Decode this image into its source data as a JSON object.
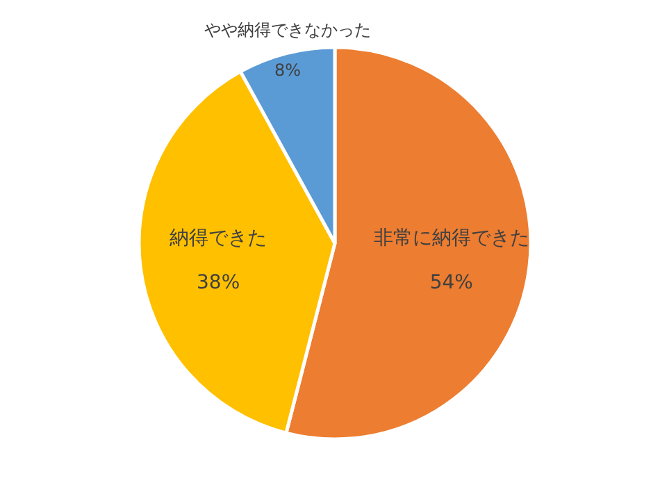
{
  "chart_data": {
    "type": "pie",
    "categories": [
      "非常に納得できた",
      "納得できた",
      "やや納得できなかった"
    ],
    "values": [
      54,
      38,
      8
    ],
    "colors": [
      "#ed7d31",
      "#ffc000",
      "#5b9bd5"
    ],
    "value_labels": [
      "54%",
      "38%",
      "8%"
    ]
  }
}
